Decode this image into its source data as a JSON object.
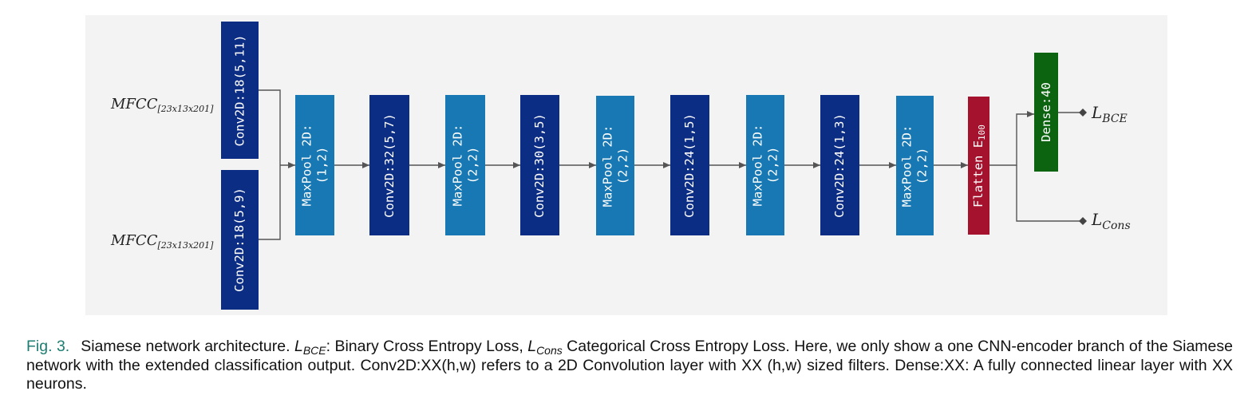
{
  "diagram": {
    "inputs": [
      {
        "main": "MFCC",
        "sub": "[23x13x201]"
      },
      {
        "main": "MFCC",
        "sub": "[23x13x201]"
      }
    ],
    "branch_convs": [
      "Conv2D:18(5,11)",
      "Conv2D:18(5,9)"
    ],
    "layers": [
      "MaxPool 2D:\n(1,2)",
      "Conv2D:32(5,7)",
      "MaxPool 2D:\n(2,2)",
      "Conv2D:30(3,5)",
      "MaxPool 2D:\n(2,2)",
      "Conv2D:24(1,5)",
      "MaxPool 2D:\n(2,2)",
      "Conv2D:24(1,3)",
      "MaxPool 2D:\n(2,2)"
    ],
    "flatten": {
      "main": "Flatten E",
      "sub": "100"
    },
    "dense": "Dense:40",
    "outputs": [
      {
        "main": "L",
        "sub": "BCE"
      },
      {
        "main": "L",
        "sub": "Cons"
      }
    ],
    "colors": {
      "conv": "#0c2d84",
      "pool": "#1878b3",
      "flatten": "#a5122d",
      "dense": "#0c6410",
      "background": "#f3f3f3"
    }
  },
  "caption": {
    "fig_label": "Fig. 3.",
    "part1": "Siamese network architecture. ",
    "lbce_main": "L",
    "lbce_sub": "BCE",
    "part2": ": Binary Cross Entropy Loss, ",
    "lcons_main": "L",
    "lcons_sub": "Cons",
    "part3": " Categorical Cross Entropy Loss. Here, we only show a one CNN-encoder branch of the Siamese network with the extended classification output. Conv2D:XX(h,w) refers to a 2D Convolution layer with XX (h,w) sized filters. Dense:XX: A fully connected linear layer with XX neurons."
  }
}
